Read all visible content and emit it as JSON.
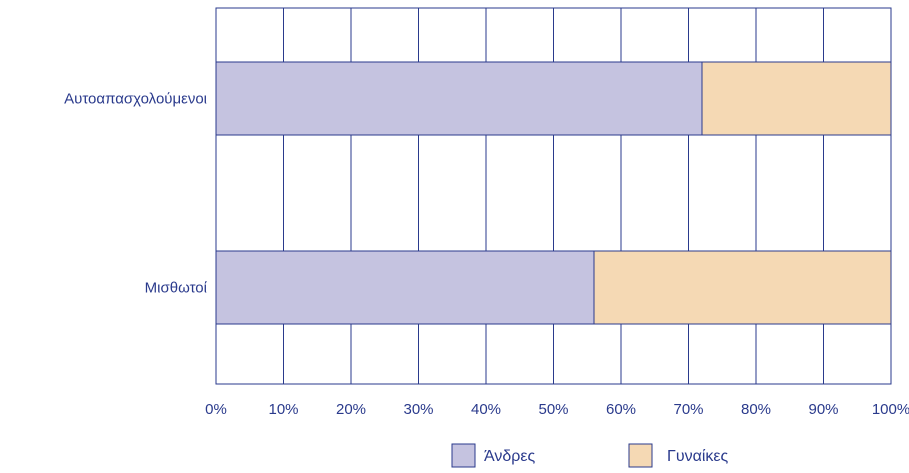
{
  "chart_data": {
    "type": "bar",
    "orientation": "horizontal",
    "stacked": true,
    "percent_scale": true,
    "categories": [
      "Αυτοαπασχολούμενοι",
      "Μισθωτοί"
    ],
    "series": [
      {
        "name": "Άνδρες",
        "values": [
          72,
          56
        ],
        "color": "#c5c3e0"
      },
      {
        "name": "Γυναίκες",
        "values": [
          28,
          44
        ],
        "color": "#f5d9b4"
      }
    ],
    "x_ticks": [
      "0%",
      "10%",
      "20%",
      "30%",
      "40%",
      "50%",
      "60%",
      "70%",
      "80%",
      "90%",
      "100%"
    ],
    "xlim": [
      0,
      100
    ],
    "grid": true,
    "legend_position": "bottom",
    "colors": {
      "axis": "#2a3a8c",
      "grid": "#2a3a8c",
      "text": "#2a3a8c"
    }
  }
}
